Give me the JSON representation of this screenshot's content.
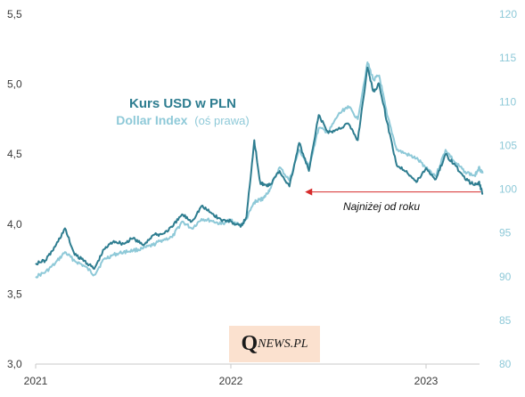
{
  "chart_data": {
    "type": "line",
    "title": "Kurs USD w PLN",
    "subtitle": "Dollar Index",
    "subtitle_note": "(oś prawa)",
    "xlabel": "",
    "ylabel": "",
    "x_ticks": [
      "2021",
      "2022",
      "2023"
    ],
    "y_left": {
      "min": 3.0,
      "max": 5.5,
      "ticks": [
        "3,0",
        "3,5",
        "4,0",
        "4,5",
        "5,0",
        "5,5"
      ]
    },
    "y_right": {
      "min": 80,
      "max": 120,
      "ticks": [
        "80",
        "85",
        "90",
        "95",
        "100",
        "105",
        "110",
        "115",
        "120"
      ]
    },
    "grid": false,
    "annotation": {
      "text": "Najniżej od roku",
      "arrow_color": "#d62b2b",
      "y_value": 4.23,
      "from_x": 2023.28,
      "to_x": 2022.38
    },
    "colors": {
      "usdpln": "#2e7d90",
      "dxy": "#8ec9d8"
    },
    "series": [
      {
        "name": "Kurs USD w PLN",
        "axis": "left",
        "x": [
          2021.0,
          2021.05,
          2021.1,
          2021.15,
          2021.2,
          2021.25,
          2021.3,
          2021.35,
          2021.4,
          2021.45,
          2021.5,
          2021.55,
          2021.6,
          2021.65,
          2021.7,
          2021.75,
          2021.8,
          2021.85,
          2021.9,
          2021.95,
          2022.0,
          2022.05,
          2022.08,
          2022.12,
          2022.15,
          2022.17,
          2022.2,
          2022.25,
          2022.3,
          2022.35,
          2022.4,
          2022.45,
          2022.5,
          2022.55,
          2022.6,
          2022.65,
          2022.7,
          2022.73,
          2022.76,
          2022.8,
          2022.85,
          2022.9,
          2022.95,
          2023.0,
          2023.05,
          2023.1,
          2023.15,
          2023.2,
          2023.25,
          2023.27,
          2023.29
        ],
        "values": [
          3.72,
          3.74,
          3.84,
          3.97,
          3.78,
          3.74,
          3.68,
          3.82,
          3.88,
          3.86,
          3.9,
          3.85,
          3.92,
          3.93,
          3.98,
          4.07,
          4.02,
          4.13,
          4.08,
          4.03,
          4.02,
          3.98,
          4.05,
          4.6,
          4.3,
          4.28,
          4.28,
          4.38,
          4.27,
          4.58,
          4.38,
          4.78,
          4.65,
          4.68,
          4.72,
          4.6,
          5.12,
          4.95,
          5.0,
          4.73,
          4.42,
          4.38,
          4.3,
          4.4,
          4.32,
          4.5,
          4.42,
          4.32,
          4.28,
          4.3,
          4.22
        ]
      },
      {
        "name": "Dollar Index",
        "axis": "right",
        "x": [
          2021.0,
          2021.05,
          2021.1,
          2021.15,
          2021.2,
          2021.25,
          2021.3,
          2021.35,
          2021.4,
          2021.45,
          2021.5,
          2021.55,
          2021.6,
          2021.65,
          2021.7,
          2021.75,
          2021.8,
          2021.85,
          2021.9,
          2021.95,
          2022.0,
          2022.05,
          2022.08,
          2022.12,
          2022.15,
          2022.17,
          2022.2,
          2022.25,
          2022.3,
          2022.35,
          2022.4,
          2022.45,
          2022.5,
          2022.55,
          2022.6,
          2022.65,
          2022.7,
          2022.73,
          2022.76,
          2022.8,
          2022.85,
          2022.9,
          2022.95,
          2023.0,
          2023.05,
          2023.1,
          2023.15,
          2023.2,
          2023.25,
          2023.27,
          2023.29
        ],
        "values": [
          90.0,
          90.5,
          91.5,
          92.8,
          91.8,
          91.2,
          90.2,
          92.0,
          92.5,
          92.8,
          93.0,
          93.2,
          93.6,
          94.2,
          94.5,
          96.3,
          95.5,
          96.6,
          96.4,
          96.0,
          96.5,
          95.8,
          96.6,
          98.5,
          98.8,
          99.0,
          100.0,
          102.5,
          101.0,
          104.5,
          102.5,
          107.0,
          106.5,
          108.5,
          109.5,
          108.0,
          114.5,
          112.5,
          113.0,
          108.5,
          104.5,
          104.0,
          103.5,
          102.5,
          101.5,
          104.5,
          103.0,
          102.0,
          101.5,
          102.5,
          101.8
        ]
      }
    ]
  }
}
